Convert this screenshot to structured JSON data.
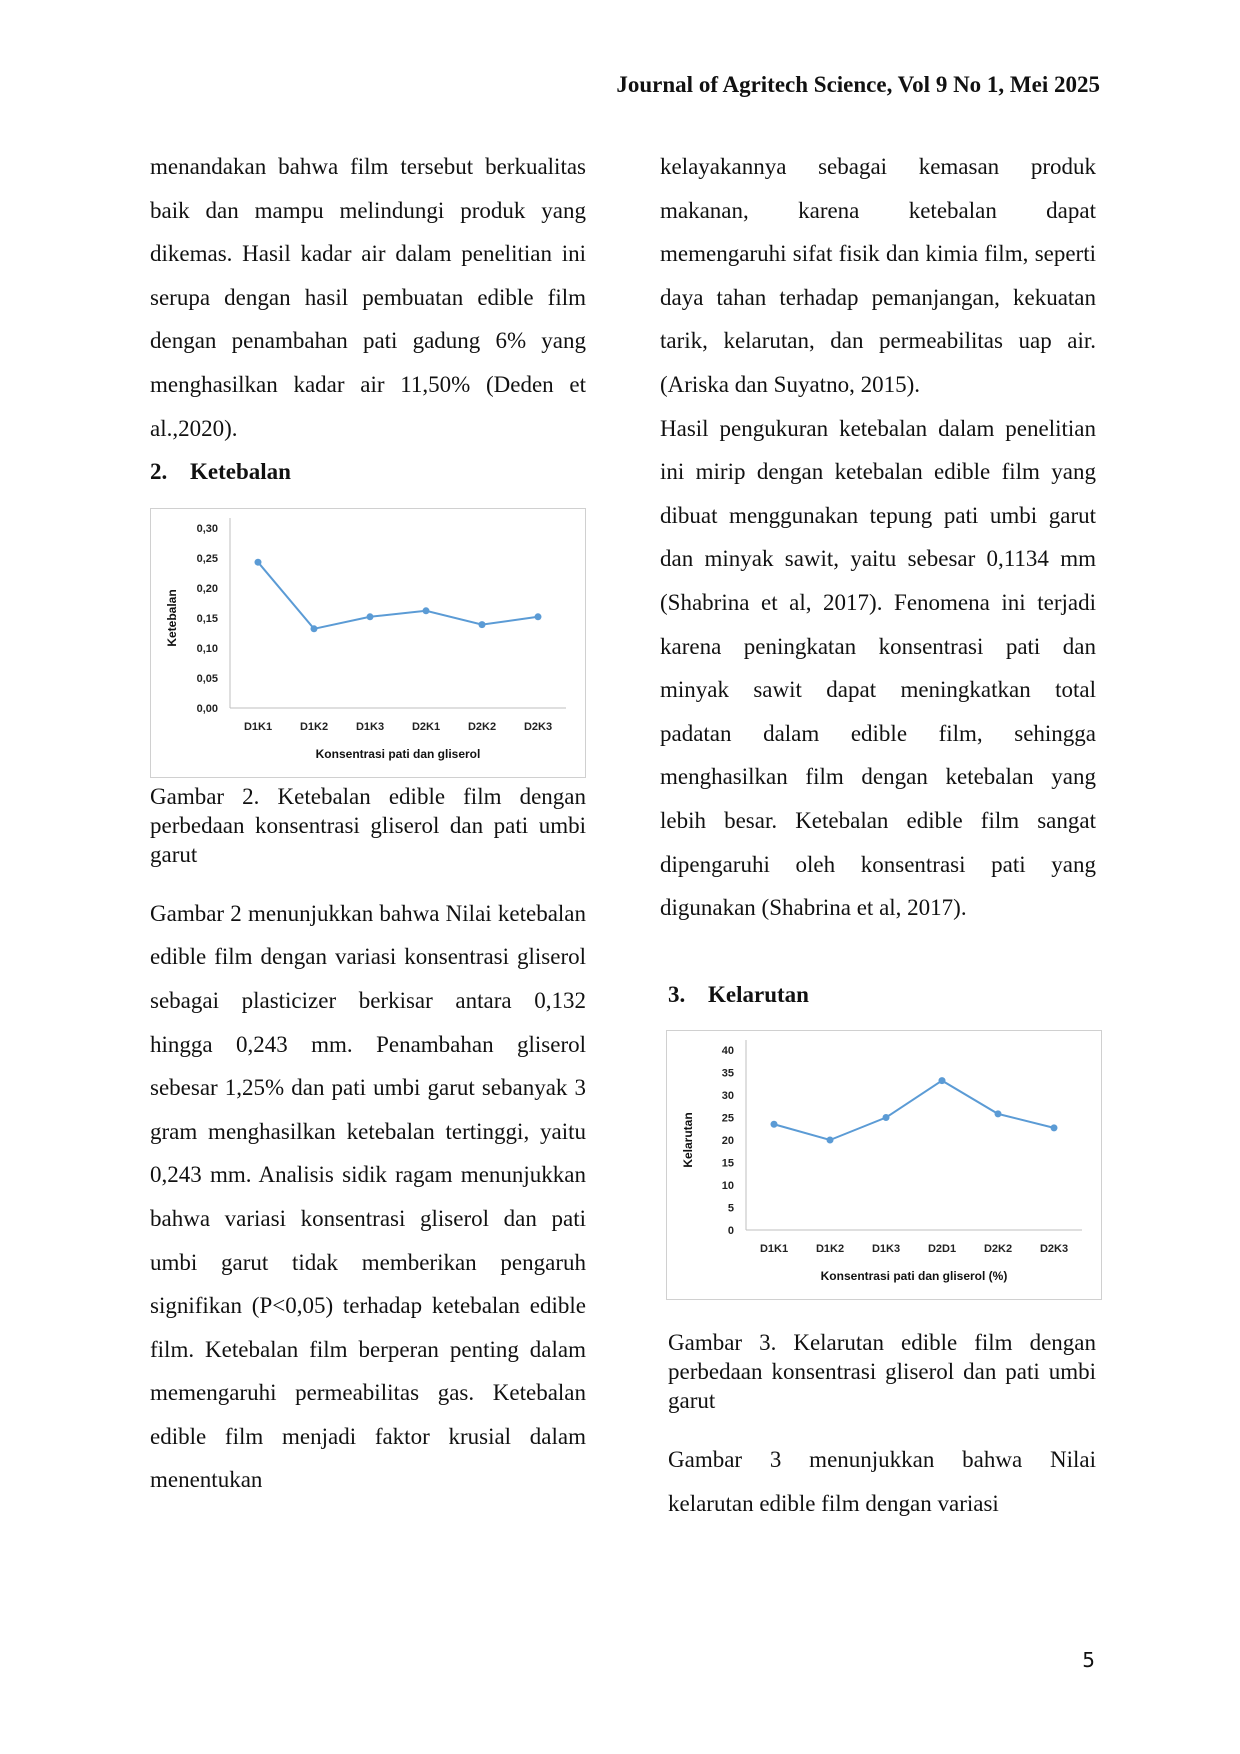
{
  "header": "Journal of Agritech Science, Vol 9 No 1, Mei 2025",
  "page_number": "5",
  "left": {
    "p1": "menandakan bahwa film tersebut berkualitas baik dan mampu melindungi produk yang dikemas. Hasil kadar air dalam penelitian ini serupa dengan hasil pembuatan edible film dengan penambahan pati gadung 6% yang menghasilkan kadar air 11,50% (Deden et al.,2020).",
    "h2_num": "2.",
    "h2_text": "Ketebalan",
    "caption2": "Gambar 2. Ketebalan edible film dengan perbedaan konsentrasi gliserol dan pati umbi garut",
    "p2": "Gambar 2 menunjukkan bahwa Nilai ketebalan edible film dengan variasi konsentrasi gliserol sebagai plasticizer berkisar antara 0,132 hingga 0,243 mm. Penambahan gliserol sebesar 1,25% dan pati umbi garut sebanyak 3 gram menghasilkan ketebalan tertinggi, yaitu 0,243 mm. Analisis sidik ragam menunjukkan bahwa variasi konsentrasi gliserol dan pati umbi garut tidak memberikan pengaruh signifikan (P<0,05) terhadap ketebalan edible film. Ketebalan film berperan penting dalam memengaruhi permeabilitas gas. Ketebalan edible film menjadi faktor krusial dalam menentukan"
  },
  "right": {
    "p1": "kelayakannya sebagai kemasan produk makanan, karena ketebalan dapat memengaruhi sifat fisik dan kimia film, seperti daya tahan terhadap pemanjangan, kekuatan tarik, kelarutan, dan permeabilitas uap air. (Ariska dan Suyatno, 2015).",
    "p2": "Hasil pengukuran ketebalan dalam penelitian ini mirip dengan ketebalan edible film yang dibuat menggunakan tepung pati umbi garut dan minyak sawit, yaitu sebesar 0,1134 mm (Shabrina et al, 2017). Fenomena ini terjadi karena peningkatan konsentrasi pati dan minyak sawit dapat meningkatkan total padatan dalam edible film, sehingga menghasilkan film dengan ketebalan yang lebih besar. Ketebalan edible film sangat dipengaruhi oleh konsentrasi pati yang digunakan (Shabrina et al, 2017).",
    "h3_num": "3.",
    "h3_text": "Kelarutan",
    "caption3": "Gambar 3. Kelarutan edible film dengan perbedaan konsentrasi gliserol dan pati umbi garut",
    "p3": "Gambar 3 menunjukkan bahwa Nilai kelarutan edible film dengan variasi"
  },
  "chart_data": [
    {
      "type": "line",
      "categories": [
        "D1K1",
        "D1K2",
        "D1K3",
        "D2K1",
        "D2K2",
        "D2K3"
      ],
      "values": [
        0.243,
        0.132,
        0.152,
        0.162,
        0.139,
        0.152
      ],
      "ylim": [
        0,
        0.3
      ],
      "yticks": [
        "0,00",
        "0,05",
        "0,10",
        "0,15",
        "0,20",
        "0,25",
        "0,30"
      ],
      "xlabel": "Konsentrasi pati dan gliserol",
      "ylabel": "Ketebalan",
      "color": "#5b9bd5"
    },
    {
      "type": "line",
      "categories": [
        "D1K1",
        "D1K2",
        "D1K3",
        "D2D1",
        "D2K2",
        "D2K3"
      ],
      "values": [
        23.5,
        20,
        25,
        33.2,
        25.8,
        22.7
      ],
      "ylim": [
        0,
        40
      ],
      "yticks": [
        "0",
        "5",
        "10",
        "15",
        "20",
        "25",
        "30",
        "35",
        "40"
      ],
      "xlabel": "Konsentrasi pati dan gliserol (%)",
      "ylabel": "Kelarutan",
      "color": "#5b9bd5"
    }
  ]
}
